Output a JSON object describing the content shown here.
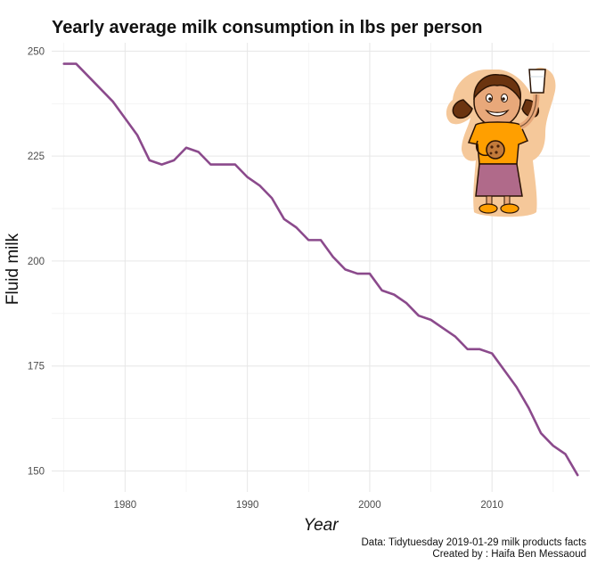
{
  "chart_data": {
    "type": "line",
    "title": "Yearly average milk consumption in lbs per person",
    "xlabel": "Year",
    "ylabel": "Fluid milk",
    "xlim": [
      1974,
      2018
    ],
    "ylim": [
      145,
      252
    ],
    "x_ticks": [
      1980,
      1990,
      2000,
      2010
    ],
    "y_ticks": [
      150,
      175,
      200,
      225,
      250
    ],
    "grid": true,
    "line_color": "#8b4a8c",
    "series": [
      {
        "x": [
          1975,
          1976,
          1977,
          1978,
          1979,
          1980,
          1981,
          1982,
          1983,
          1984,
          1985,
          1986,
          1987,
          1988,
          1989,
          1990,
          1991,
          1992,
          1993,
          1994,
          1995,
          1996,
          1997,
          1998,
          1999,
          2000,
          2001,
          2002,
          2003,
          2004,
          2005,
          2006,
          2007,
          2008,
          2009,
          2010,
          2011,
          2012,
          2013,
          2014,
          2015,
          2016,
          2017
        ],
        "values": [
          247,
          247,
          244,
          241,
          238,
          234,
          230,
          224,
          223,
          224,
          227,
          226,
          223,
          223,
          223,
          220,
          218,
          215,
          210,
          208,
          205,
          205,
          201,
          198,
          197,
          197,
          193,
          192,
          190,
          187,
          186,
          184,
          182,
          179,
          179,
          178,
          174,
          170,
          165,
          159,
          156,
          154,
          149
        ]
      }
    ],
    "caption": {
      "line1": "Data: Tidytuesday 2019-01-29 milk products facts",
      "line2": "Created by : Haifa Ben Messaoud"
    },
    "image": {
      "name": "girl-with-milk-and-cookie",
      "colors": {
        "hair": "#6b3410",
        "shirt": "#ff9f00",
        "skirt": "#b06a8a",
        "outline": "#f5c89a"
      }
    }
  }
}
